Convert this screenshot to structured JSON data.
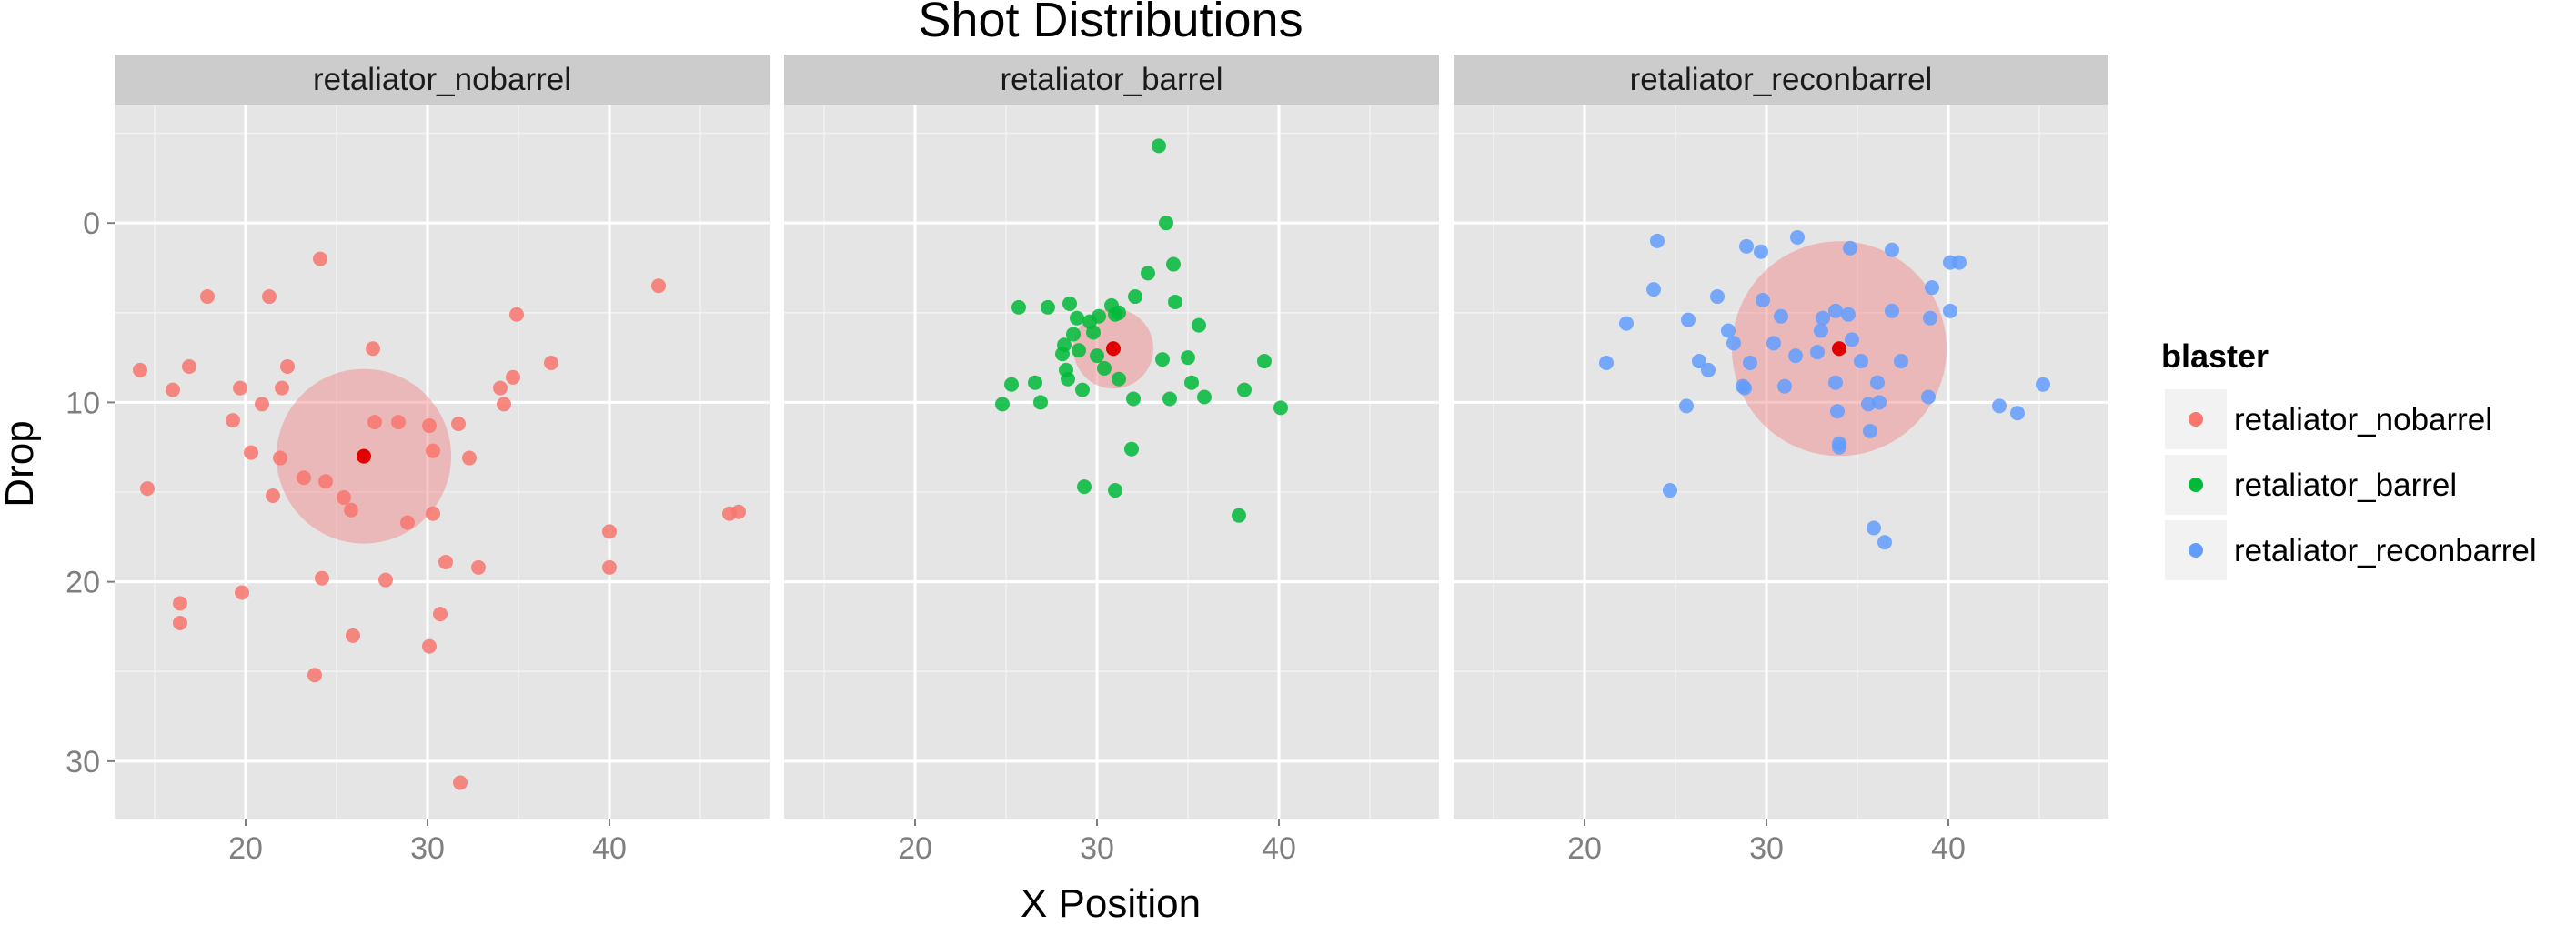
{
  "chart_data": {
    "type": "scatter",
    "title": "Shot Distributions",
    "xlabel": "X Position",
    "ylabel": "Drop",
    "xlim": [
      12.8,
      48.8
    ],
    "ylim": [
      33.2,
      -6.6
    ],
    "y_inverted": true,
    "x_ticks": [
      20,
      30,
      40
    ],
    "x_tick_labels": [
      "20",
      "30",
      "40"
    ],
    "y_ticks": [
      0,
      10,
      20,
      30
    ],
    "y_tick_labels": [
      "0",
      "10",
      "20",
      "30"
    ],
    "grid": true,
    "legend": {
      "title": "blaster",
      "placement": "right",
      "entries": [
        "retaliator_nobarrel",
        "retaliator_barrel",
        "retaliator_reconbarrel"
      ]
    },
    "center_color": "#E00000",
    "circle_color": "#F08080",
    "panels": [
      {
        "name": "retaliator_nobarrel",
        "color": "#F8766D",
        "center": [
          26.5,
          13.0
        ],
        "radius_x": 4.8,
        "points": [
          [
            14.2,
            8.2
          ],
          [
            14.6,
            14.8
          ],
          [
            16.0,
            9.3
          ],
          [
            16.4,
            21.2
          ],
          [
            16.4,
            22.3
          ],
          [
            16.9,
            8.0
          ],
          [
            17.9,
            4.1
          ],
          [
            19.3,
            11.0
          ],
          [
            19.7,
            9.2
          ],
          [
            19.8,
            20.6
          ],
          [
            20.3,
            12.8
          ],
          [
            20.9,
            10.1
          ],
          [
            21.3,
            4.1
          ],
          [
            21.5,
            15.2
          ],
          [
            21.9,
            13.1
          ],
          [
            22.0,
            9.2
          ],
          [
            22.3,
            8.0
          ],
          [
            23.2,
            14.2
          ],
          [
            23.8,
            25.2
          ],
          [
            24.1,
            2.0
          ],
          [
            24.2,
            19.8
          ],
          [
            24.4,
            14.4
          ],
          [
            25.4,
            15.3
          ],
          [
            25.8,
            16.0
          ],
          [
            25.9,
            23.0
          ],
          [
            26.5,
            13.0
          ],
          [
            27.0,
            7.0
          ],
          [
            27.1,
            11.1
          ],
          [
            27.7,
            19.9
          ],
          [
            28.4,
            11.1
          ],
          [
            28.9,
            16.7
          ],
          [
            30.1,
            11.3
          ],
          [
            30.1,
            23.6
          ],
          [
            30.3,
            16.2
          ],
          [
            30.3,
            12.7
          ],
          [
            30.7,
            21.8
          ],
          [
            31.0,
            18.9
          ],
          [
            31.7,
            11.2
          ],
          [
            31.8,
            31.2
          ],
          [
            32.3,
            13.1
          ],
          [
            32.8,
            19.2
          ],
          [
            34.0,
            9.2
          ],
          [
            34.2,
            10.1
          ],
          [
            34.7,
            8.6
          ],
          [
            34.9,
            5.1
          ],
          [
            36.8,
            7.8
          ],
          [
            40.0,
            17.2
          ],
          [
            40.0,
            19.2
          ],
          [
            42.7,
            3.5
          ],
          [
            46.6,
            16.2
          ],
          [
            47.1,
            16.1
          ]
        ]
      },
      {
        "name": "retaliator_barrel",
        "color": "#00BA38",
        "center": [
          30.9,
          7.0
        ],
        "radius_x": 2.2,
        "points": [
          [
            24.8,
            10.1
          ],
          [
            25.3,
            9.0
          ],
          [
            25.7,
            4.7
          ],
          [
            26.6,
            8.9
          ],
          [
            26.9,
            10.0
          ],
          [
            27.3,
            4.7
          ],
          [
            28.1,
            7.3
          ],
          [
            28.2,
            6.8
          ],
          [
            28.3,
            8.2
          ],
          [
            28.4,
            8.7
          ],
          [
            28.5,
            4.5
          ],
          [
            28.7,
            6.2
          ],
          [
            28.9,
            5.3
          ],
          [
            29.0,
            7.1
          ],
          [
            29.2,
            9.3
          ],
          [
            29.3,
            14.7
          ],
          [
            29.6,
            5.5
          ],
          [
            29.8,
            6.1
          ],
          [
            30.0,
            7.4
          ],
          [
            30.1,
            5.2
          ],
          [
            30.4,
            8.1
          ],
          [
            30.8,
            4.6
          ],
          [
            30.9,
            7.0
          ],
          [
            31.0,
            5.1
          ],
          [
            31.0,
            14.9
          ],
          [
            31.2,
            5.0
          ],
          [
            31.2,
            8.7
          ],
          [
            31.9,
            12.6
          ],
          [
            32.0,
            9.8
          ],
          [
            32.1,
            4.1
          ],
          [
            32.8,
            2.8
          ],
          [
            33.4,
            -4.3
          ],
          [
            33.6,
            7.6
          ],
          [
            33.8,
            0.0
          ],
          [
            34.0,
            9.8
          ],
          [
            34.2,
            2.3
          ],
          [
            34.3,
            4.4
          ],
          [
            35.0,
            7.5
          ],
          [
            35.2,
            8.9
          ],
          [
            35.6,
            5.7
          ],
          [
            35.9,
            9.7
          ],
          [
            37.8,
            16.3
          ],
          [
            38.1,
            9.3
          ],
          [
            39.2,
            7.7
          ],
          [
            40.1,
            10.3
          ]
        ]
      },
      {
        "name": "retaliator_reconbarrel",
        "color": "#619CFF",
        "center": [
          34.0,
          7.0
        ],
        "radius_x": 5.9,
        "points": [
          [
            21.2,
            7.8
          ],
          [
            22.3,
            5.6
          ],
          [
            23.8,
            3.7
          ],
          [
            24.0,
            1.0
          ],
          [
            24.7,
            14.9
          ],
          [
            25.6,
            10.2
          ],
          [
            25.7,
            5.4
          ],
          [
            26.3,
            7.7
          ],
          [
            26.8,
            8.2
          ],
          [
            27.3,
            4.1
          ],
          [
            27.9,
            6.0
          ],
          [
            28.2,
            6.7
          ],
          [
            28.7,
            9.1
          ],
          [
            28.8,
            9.2
          ],
          [
            28.9,
            1.3
          ],
          [
            29.1,
            7.8
          ],
          [
            29.7,
            1.6
          ],
          [
            29.8,
            4.3
          ],
          [
            30.4,
            6.7
          ],
          [
            30.8,
            5.2
          ],
          [
            31.0,
            9.1
          ],
          [
            31.6,
            7.4
          ],
          [
            31.7,
            0.8
          ],
          [
            32.8,
            7.2
          ],
          [
            33.0,
            6.0
          ],
          [
            33.1,
            5.3
          ],
          [
            33.8,
            4.9
          ],
          [
            33.8,
            8.9
          ],
          [
            33.9,
            10.5
          ],
          [
            34.0,
            12.3
          ],
          [
            34.0,
            12.5
          ],
          [
            34.0,
            7.0
          ],
          [
            34.5,
            5.1
          ],
          [
            34.6,
            1.4
          ],
          [
            34.7,
            6.5
          ],
          [
            35.2,
            7.7
          ],
          [
            35.6,
            10.1
          ],
          [
            35.7,
            11.6
          ],
          [
            35.9,
            17.0
          ],
          [
            36.1,
            8.9
          ],
          [
            36.2,
            10.0
          ],
          [
            36.5,
            17.8
          ],
          [
            36.9,
            1.5
          ],
          [
            36.9,
            4.9
          ],
          [
            37.4,
            7.7
          ],
          [
            38.9,
            9.7
          ],
          [
            39.0,
            5.3
          ],
          [
            39.1,
            3.6
          ],
          [
            40.1,
            4.9
          ],
          [
            40.1,
            2.2
          ],
          [
            40.6,
            2.2
          ],
          [
            42.8,
            10.2
          ],
          [
            43.8,
            10.6
          ],
          [
            45.2,
            9.0
          ]
        ]
      }
    ]
  }
}
